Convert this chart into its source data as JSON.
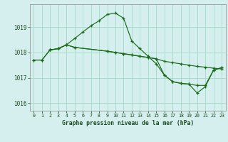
{
  "title": "Graphe pression niveau de la mer (hPa)",
  "background_color": "#d5eeee",
  "grid_color": "#aaddcc",
  "line_color": "#1a6b1a",
  "xlim": [
    -0.5,
    23.5
  ],
  "ylim": [
    1015.7,
    1019.9
  ],
  "yticks": [
    1016,
    1017,
    1018,
    1019
  ],
  "xticks": [
    0,
    1,
    2,
    3,
    4,
    5,
    6,
    7,
    8,
    9,
    10,
    11,
    12,
    13,
    14,
    15,
    16,
    17,
    18,
    19,
    20,
    21,
    22,
    23
  ],
  "series1_x": [
    0,
    1,
    2,
    3,
    4,
    5,
    6,
    7,
    8,
    9,
    10,
    11,
    12,
    13,
    14,
    15,
    16,
    17,
    18,
    19,
    20,
    21,
    22,
    23
  ],
  "series1_y": [
    1017.7,
    1017.7,
    1018.1,
    1018.15,
    1018.3,
    1018.55,
    1018.8,
    1019.05,
    1019.25,
    1019.5,
    1019.55,
    1019.35,
    1018.45,
    1018.15,
    1017.85,
    1017.55,
    1017.1,
    1016.85,
    1016.78,
    1016.75,
    1016.4,
    1016.65,
    1017.3,
    1017.4
  ],
  "series2_x": [
    0,
    1,
    2,
    3,
    4,
    5,
    9,
    10,
    11,
    12,
    13,
    14,
    15,
    16,
    17,
    18,
    19,
    20,
    21,
    22,
    23
  ],
  "series2_y": [
    1017.7,
    1017.7,
    1018.1,
    1018.15,
    1018.3,
    1018.2,
    1018.05,
    1018.0,
    1017.95,
    1017.9,
    1017.85,
    1017.8,
    1017.75,
    1017.65,
    1017.6,
    1017.55,
    1017.5,
    1017.45,
    1017.42,
    1017.38,
    1017.35
  ],
  "series3_x": [
    2,
    3,
    4,
    5,
    9,
    10,
    11,
    12,
    13,
    14,
    15,
    16,
    17,
    18,
    19,
    20,
    21,
    22,
    23
  ],
  "series3_y": [
    1018.1,
    1018.15,
    1018.3,
    1018.2,
    1018.05,
    1018.0,
    1017.95,
    1017.9,
    1017.85,
    1017.8,
    1017.75,
    1017.1,
    1016.85,
    1016.78,
    1016.75,
    1016.7,
    1016.7,
    1017.3,
    1017.4
  ]
}
